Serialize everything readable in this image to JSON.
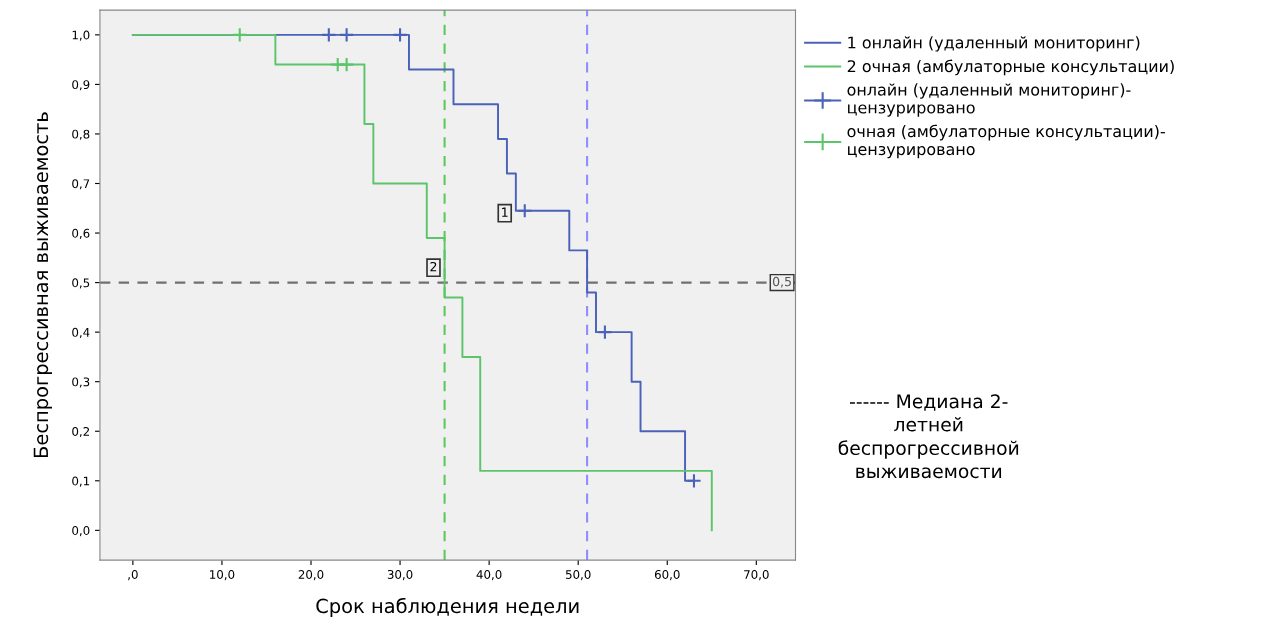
{
  "chart_data": {
    "type": "step",
    "xlabel": "Срок наблюдения недели",
    "ylabel": "Беспрогрессивная выживаемость",
    "xlim": [
      -3.7,
      74.4
    ],
    "ylim": [
      -0.06,
      1.05
    ],
    "xticks": [
      {
        "value": 0,
        "label": ",0"
      },
      {
        "value": 10,
        "label": "10,0"
      },
      {
        "value": 20,
        "label": "20,0"
      },
      {
        "value": 30,
        "label": "30,0"
      },
      {
        "value": 40,
        "label": "40,0"
      },
      {
        "value": 50,
        "label": "50,0"
      },
      {
        "value": 60,
        "label": "60,0"
      },
      {
        "value": 70,
        "label": "70,0"
      }
    ],
    "yticks": [
      {
        "value": 0,
        "label": "0,0"
      },
      {
        "value": 0.1,
        "label": "0,1"
      },
      {
        "value": 0.2,
        "label": "0,2"
      },
      {
        "value": 0.3,
        "label": "0,3"
      },
      {
        "value": 0.4,
        "label": "0,4"
      },
      {
        "value": 0.5,
        "label": "0,5"
      },
      {
        "value": 0.6,
        "label": "0,6"
      },
      {
        "value": 0.7,
        "label": "0,7"
      },
      {
        "value": 0.8,
        "label": "0,8"
      },
      {
        "value": 0.9,
        "label": "0,9"
      },
      {
        "value": 1.0,
        "label": "1,0"
      }
    ],
    "grid": false,
    "legend": "top right",
    "series": [
      {
        "name": "1 онлайн (удаленный мониторинг)",
        "color": "#4a62b8",
        "x": [
          0,
          31,
          36,
          41,
          42,
          43,
          49,
          51,
          52,
          56,
          57,
          62,
          63
        ],
        "values": [
          1.0,
          0.93,
          0.86,
          0.79,
          0.72,
          0.645,
          0.565,
          0.48,
          0.4,
          0.3,
          0.2,
          0.1,
          0.1
        ]
      },
      {
        "name": "2 очная (амбулаторные консультации)",
        "color": "#5cc46a",
        "x": [
          0,
          16,
          26,
          27,
          33,
          35,
          37,
          39,
          65,
          65
        ],
        "values": [
          1.0,
          0.94,
          0.82,
          0.7,
          0.59,
          0.47,
          0.35,
          0.12,
          0.12,
          0.0
        ]
      },
      {
        "name": "онлайн (удаленный мониторинг)-\nцензурировано",
        "type": "scatter",
        "marker": "cross",
        "color": "#4a62b8",
        "x": [
          22,
          24,
          30,
          44,
          53,
          63
        ],
        "values": [
          1.0,
          1.0,
          1.0,
          0.645,
          0.4,
          0.1
        ]
      },
      {
        "name": "очная (амбулаторные консультации)-\nцензурировано",
        "type": "scatter",
        "marker": "cross",
        "color": "#5cc46a",
        "x": [
          12,
          23,
          24
        ],
        "values": [
          1.0,
          0.94,
          0.94
        ]
      }
    ],
    "ref_lines": [
      {
        "axis": "x",
        "value": 35,
        "color": "#5cc85c",
        "line_style": "dashed"
      },
      {
        "axis": "x",
        "value": 51,
        "color": "#8c8cff",
        "line_style": "dashed"
      },
      {
        "axis": "y",
        "value": 0.5,
        "label": "0,5",
        "color": "#707070",
        "line_style": "dashed"
      }
    ],
    "annotations": [
      {
        "text": "1",
        "x": 43,
        "y": 0.64
      },
      {
        "text": "2",
        "x": 35,
        "y": 0.53
      },
      "------ Медиана 2-\nлетней\nбеспрогрессивной\nвыживаемости"
    ]
  }
}
